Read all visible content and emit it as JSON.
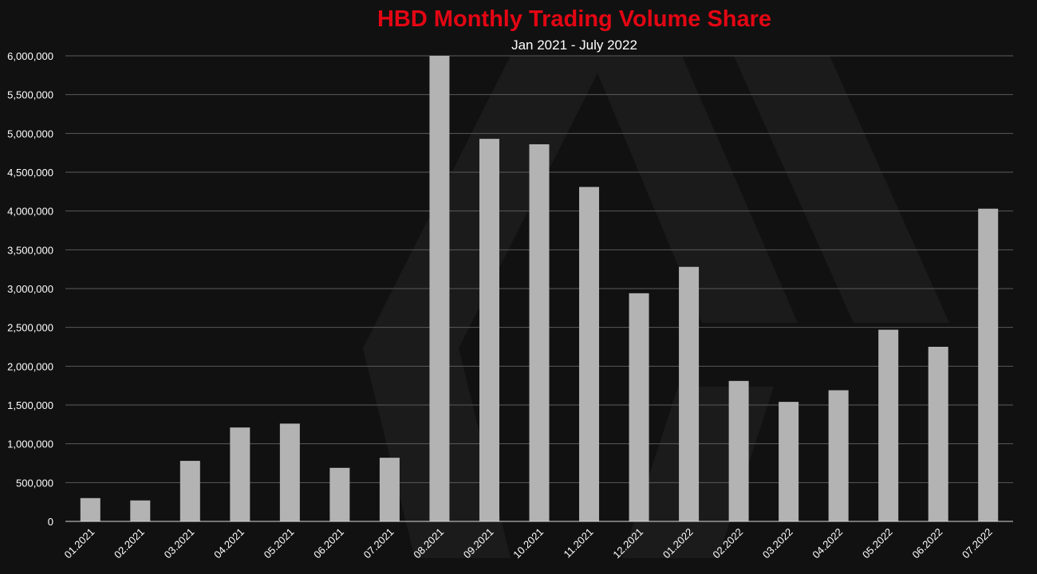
{
  "chart_data": {
    "type": "bar",
    "title": "HBD Monthly Trading Volume Share",
    "subtitle": "Jan 2021 - July 2022",
    "xlabel": "",
    "ylabel": "",
    "ylim": [
      0,
      6000000
    ],
    "grid": true,
    "legend": "none",
    "y_ticks": [
      "0",
      "500,000",
      "1,000,000",
      "1,500,000",
      "2,000,000",
      "2,500,000",
      "3,000,000",
      "3,500,000",
      "4,000,000",
      "4,500,000",
      "5,000,000",
      "5,500,000",
      "6,000,000"
    ],
    "categories": [
      "01.2021",
      "02.2021",
      "03.2021",
      "04.2021",
      "05.2021",
      "06.2021",
      "07.2021",
      "08.2021",
      "09.2021",
      "10.2021",
      "11.2021",
      "12.2021",
      "01.2022",
      "02.2022",
      "03.2022",
      "04.2022",
      "05.2022",
      "06.2022",
      "07.2022"
    ],
    "values": [
      300000,
      270000,
      780000,
      1210000,
      1260000,
      690000,
      820000,
      6000000,
      4930000,
      4860000,
      4310000,
      2940000,
      3280000,
      1810000,
      1540000,
      1690000,
      2470000,
      2250000,
      4030000
    ],
    "colors": {
      "title": "#e30613",
      "bar": "#b3b3b3",
      "grid": "#5a5a5a",
      "text": "#ffffff",
      "background": "#111111",
      "watermark": "#1d1d1d"
    }
  }
}
